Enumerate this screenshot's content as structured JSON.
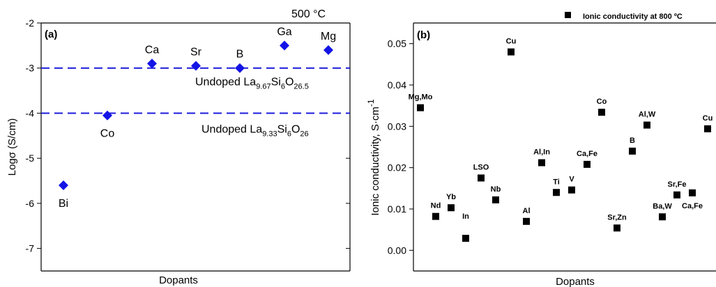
{
  "chart_data": [
    {
      "panel_label": "(a)",
      "type": "scatter",
      "corner_note": "500 °C",
      "xlabel": "Dopants",
      "ylabel": "Logσ (S/cm)",
      "ylim": [
        -7.5,
        -2
      ],
      "yticks": [
        -2,
        -3,
        -4,
        -5,
        -6,
        -7
      ],
      "marker": "diamond",
      "marker_color": "#1414e6",
      "points": [
        {
          "label": "Bi",
          "y": -5.6
        },
        {
          "label": "Co",
          "y": -4.05
        },
        {
          "label": "Ca",
          "y": -2.9
        },
        {
          "label": "Sr",
          "y": -2.95
        },
        {
          "label": "B",
          "y": -3.0
        },
        {
          "label": "Ga",
          "y": -2.5
        },
        {
          "label": "Mg",
          "y": -2.6
        }
      ],
      "reference_lines": [
        {
          "y": -3,
          "label_main": "Undoped La",
          "sub1": "9.67",
          "mid": "Si",
          "sub2": "6",
          "tail": "O",
          "sub3": "26.5"
        },
        {
          "y": -4,
          "label_main": "Undoped La",
          "sub1": "9.33",
          "mid": "Si",
          "sub2": "6",
          "tail": "O",
          "sub3": "26"
        }
      ]
    },
    {
      "panel_label": "(b)",
      "type": "scatter",
      "legend": "Ionic conductivity at 800 ºC",
      "legend_position": "top-right",
      "xlabel": "Dopants",
      "ylabel_main": "Ionic conductivity, S·cm",
      "ylabel_sup": "-1",
      "ylim": [
        -0.005,
        0.055
      ],
      "yticks": [
        "0.00",
        "0.01",
        "0.02",
        "0.03",
        "0.04",
        "0.05"
      ],
      "marker": "square",
      "marker_color": "#000000",
      "points": [
        {
          "label": "Mg,Mo",
          "y": 0.0345
        },
        {
          "label": "Nd",
          "y": 0.0082
        },
        {
          "label": "Yb",
          "y": 0.0103
        },
        {
          "label": "In",
          "y": 0.0029
        },
        {
          "label": "LSO",
          "y": 0.0175
        },
        {
          "label": "Nb",
          "y": 0.0122
        },
        {
          "label": "Cu",
          "y": 0.048
        },
        {
          "label": "Al",
          "y": 0.007
        },
        {
          "label": "Al,In",
          "y": 0.0212
        },
        {
          "label": "Ti",
          "y": 0.014
        },
        {
          "label": "V",
          "y": 0.0146
        },
        {
          "label": "Ca,Fe",
          "y": 0.0208
        },
        {
          "label": "Co",
          "y": 0.0334
        },
        {
          "label": "Sr,Zn",
          "y": 0.0054
        },
        {
          "label": "B",
          "y": 0.024
        },
        {
          "label": "Al,W",
          "y": 0.0303
        },
        {
          "label": "Ba,W",
          "y": 0.0081
        },
        {
          "label": "Sr,Fe",
          "y": 0.0134
        },
        {
          "label": "Ca,Fe",
          "y": 0.0139
        },
        {
          "label": "Cu",
          "y": 0.0294
        }
      ]
    }
  ]
}
